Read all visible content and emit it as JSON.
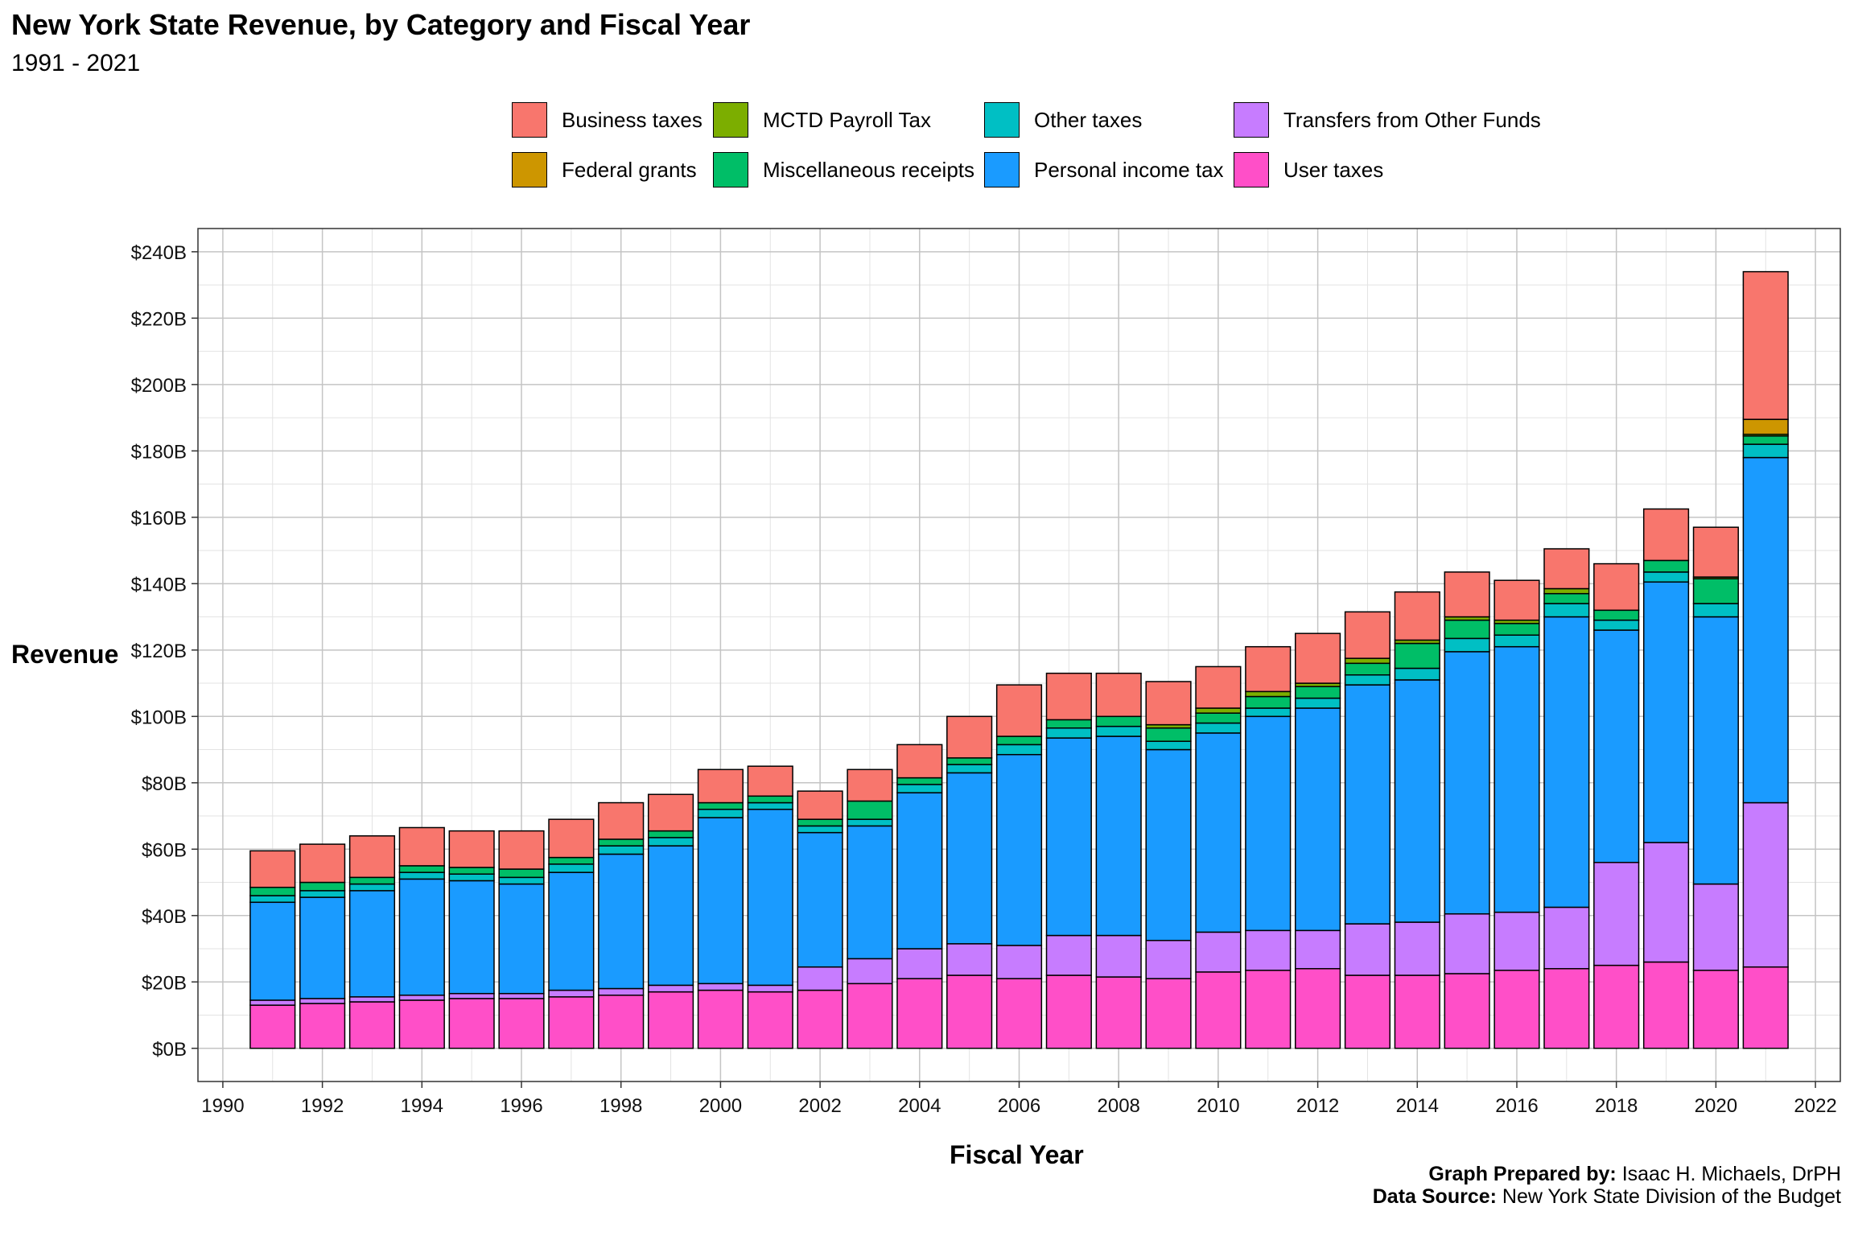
{
  "title": "New York State Revenue, by Category and Fiscal Year",
  "subtitle": "1991 - 2021",
  "credits": {
    "prepared_label": "Graph Prepared by:",
    "prepared_value": " Isaac H. Michaels, DrPH",
    "source_label": "Data Source:",
    "source_value": " New York State Division of the Budget"
  },
  "legend": [
    {
      "name": "Business taxes",
      "color": "#F8766D"
    },
    {
      "name": "MCTD Payroll Tax",
      "color": "#7CAE00"
    },
    {
      "name": "Other taxes",
      "color": "#00BFC4"
    },
    {
      "name": "Transfers from Other Funds",
      "color": "#C77CFF"
    },
    {
      "name": "Federal grants",
      "color": "#CD9600"
    },
    {
      "name": "Miscellaneous receipts",
      "color": "#00BE67"
    },
    {
      "name": "Personal income tax",
      "color": "#1A9BFF"
    },
    {
      "name": "User taxes",
      "color": "#FF4FC8"
    }
  ],
  "chart_data": {
    "type": "bar",
    "stacked": true,
    "xlabel": "Fiscal Year",
    "ylabel": "Revenue",
    "xlim": [
      1989.5,
      2022.5
    ],
    "ylim": [
      -10,
      247
    ],
    "x_ticks": [
      1990,
      1992,
      1994,
      1996,
      1998,
      2000,
      2002,
      2004,
      2006,
      2008,
      2010,
      2012,
      2014,
      2016,
      2018,
      2020,
      2022
    ],
    "y_ticks": [
      0,
      20,
      40,
      60,
      80,
      100,
      120,
      140,
      160,
      180,
      200,
      220,
      240
    ],
    "y_tick_labels": [
      "$0B",
      "$20B",
      "$40B",
      "$60B",
      "$80B",
      "$100B",
      "$120B",
      "$140B",
      "$160B",
      "$180B",
      "$200B",
      "$220B",
      "$240B"
    ],
    "grid": true,
    "legend_position": "top",
    "x": [
      1991,
      1992,
      1993,
      1994,
      1995,
      1996,
      1997,
      1998,
      1999,
      2000,
      2001,
      2002,
      2003,
      2004,
      2005,
      2006,
      2007,
      2008,
      2009,
      2010,
      2011,
      2012,
      2013,
      2014,
      2015,
      2016,
      2017,
      2018,
      2019,
      2020,
      2021
    ],
    "series": [
      {
        "name": "User taxes",
        "color": "#FF4FC8",
        "values": [
          13,
          13.5,
          14,
          14.5,
          15,
          15,
          15.5,
          16,
          17,
          17.5,
          17,
          17.5,
          19.5,
          21,
          22,
          21,
          22,
          21.5,
          21,
          23,
          23.5,
          24,
          22,
          22,
          22.5,
          23.5,
          24,
          25,
          26,
          23.5,
          24.5
        ]
      },
      {
        "name": "Transfers from Other Funds",
        "color": "#C77CFF",
        "values": [
          1.5,
          1.5,
          1.5,
          1.5,
          1.5,
          1.5,
          2,
          2,
          2,
          2,
          2,
          7,
          7.5,
          9,
          9.5,
          10,
          12,
          12.5,
          11.5,
          12,
          12,
          11.5,
          15.5,
          16,
          18,
          17.5,
          18.5,
          31,
          36,
          26,
          49.5
        ]
      },
      {
        "name": "Personal income tax",
        "color": "#1A9BFF",
        "values": [
          29.5,
          30.5,
          32,
          35,
          34,
          33,
          35.5,
          40.5,
          42,
          50,
          53,
          40.5,
          40,
          47,
          51.5,
          57.5,
          59.5,
          60,
          57.5,
          60,
          64.5,
          67,
          72,
          73,
          79,
          80,
          87.5,
          70,
          78.5,
          80.5,
          104
        ]
      },
      {
        "name": "Other taxes",
        "color": "#00BFC4",
        "values": [
          2,
          2,
          2,
          2,
          2,
          2,
          2.5,
          2.5,
          2.5,
          2.5,
          2,
          2,
          2,
          2.5,
          2.5,
          3,
          3,
          3,
          2.5,
          3,
          2.5,
          3,
          3,
          3.5,
          4,
          3.5,
          4,
          3,
          3,
          4,
          4
        ]
      },
      {
        "name": "Miscellaneous receipts",
        "color": "#00BE67",
        "values": [
          2.5,
          2.5,
          2,
          2,
          2,
          2.5,
          2,
          2,
          2,
          2,
          2,
          2,
          5.5,
          2,
          2,
          2.5,
          2.5,
          3,
          4,
          3,
          3.5,
          3.5,
          3.5,
          7.5,
          5.5,
          3.5,
          3,
          3,
          3.5,
          7.5,
          2.5
        ]
      },
      {
        "name": "MCTD Payroll Tax",
        "color": "#7CAE00",
        "values": [
          0,
          0,
          0,
          0,
          0,
          0,
          0,
          0,
          0,
          0,
          0,
          0,
          0,
          0,
          0,
          0,
          0,
          0,
          1,
          1.5,
          1.5,
          1,
          1.5,
          1,
          1,
          1,
          1.5,
          0,
          0,
          0.5,
          0.5
        ]
      },
      {
        "name": "Federal grants",
        "color": "#CD9600",
        "values": [
          0,
          0,
          0,
          0,
          0,
          0,
          0,
          0,
          0,
          0,
          0,
          0,
          0,
          0,
          0,
          0,
          0,
          0,
          0,
          0,
          0,
          0,
          0,
          0,
          0,
          0,
          0,
          0,
          0,
          0,
          4.5
        ]
      },
      {
        "name": "Business taxes",
        "color": "#F8766D",
        "values": [
          11,
          11.5,
          12.5,
          11.5,
          11,
          11.5,
          11.5,
          11,
          11,
          10,
          9,
          8.5,
          9.5,
          10,
          12.5,
          15.5,
          14,
          13,
          13,
          12.5,
          13.5,
          15,
          14,
          14.5,
          13.5,
          12,
          12,
          14,
          15.5,
          15,
          44.5
        ]
      }
    ]
  }
}
